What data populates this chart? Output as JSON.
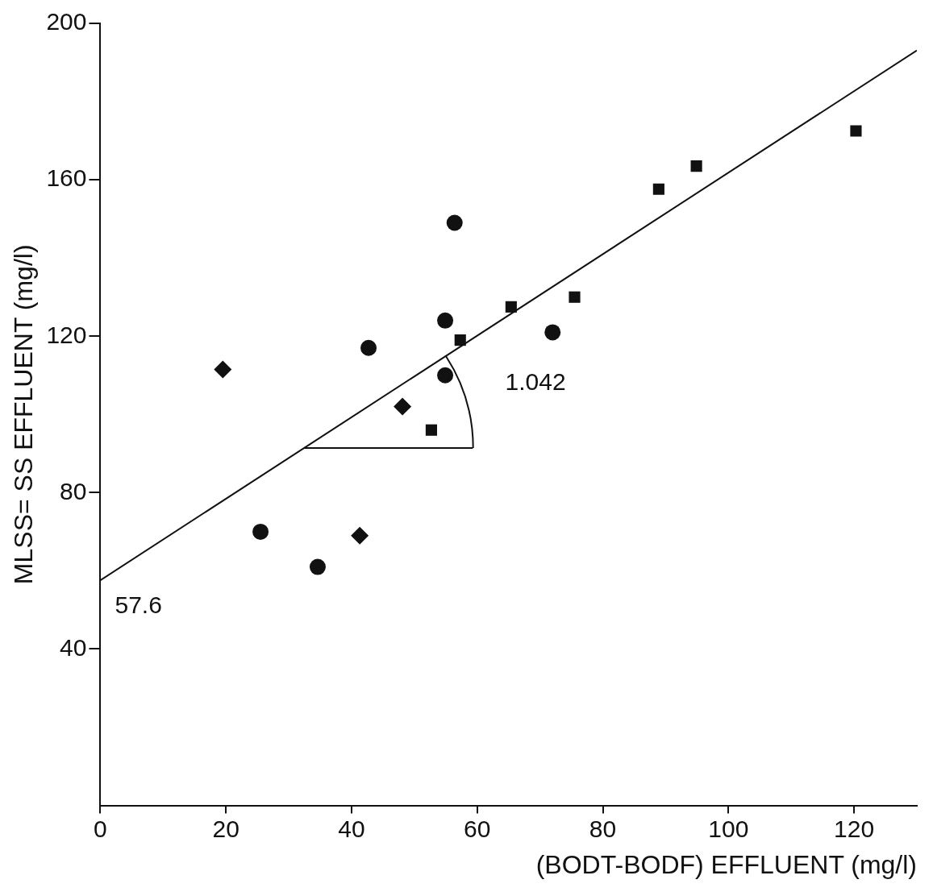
{
  "chart_data": {
    "type": "scatter",
    "xlabel": "(BODT-BODF) EFFLUENT (mg/l)",
    "ylabel": "MLSS= SS EFFLUENT (mg/l)",
    "xlim": [
      0,
      130
    ],
    "xticks": [
      0,
      20,
      40,
      60,
      80,
      100,
      120
    ],
    "ylim": [
      0,
      200
    ],
    "yticks": [
      40,
      80,
      120,
      160,
      200
    ],
    "grid": false,
    "legend": false,
    "series": [
      {
        "color": "#111111",
        "marker": "circle",
        "x": [
          56.4,
          54.9,
          42.7,
          54.9,
          72,
          25.5,
          34.6
        ],
        "values": [
          149,
          124,
          117,
          110,
          121,
          70,
          61
        ]
      },
      {
        "color": "#111111",
        "marker": "square",
        "x": [
          52.7,
          57.3,
          65.4,
          75.5,
          88.9,
          94.9,
          120.3
        ],
        "values": [
          96,
          119,
          127.5,
          130,
          157.6,
          163.5,
          172.5
        ]
      },
      {
        "color": "#111111",
        "marker": "diamond",
        "x": [
          19.5,
          48.1,
          41.3
        ],
        "values": [
          111.5,
          102,
          69
        ]
      },
      {
        "type": "line",
        "color": "#111111",
        "marker": "none",
        "line_style": "solid",
        "x": [
          0,
          130
        ],
        "values": [
          57.6,
          193.1
        ]
      },
      {
        "type": "line",
        "color": "#111111",
        "marker": "none",
        "line_style": "solid",
        "x": [
          32.4,
          59.3
        ],
        "values": [
          91.4,
          91.4
        ]
      }
    ],
    "annotations": [
      {
        "text": "57.6",
        "x": 0,
        "y": 57.6
      },
      {
        "text": "1.042",
        "x": 55,
        "y": 114.9
      }
    ]
  }
}
